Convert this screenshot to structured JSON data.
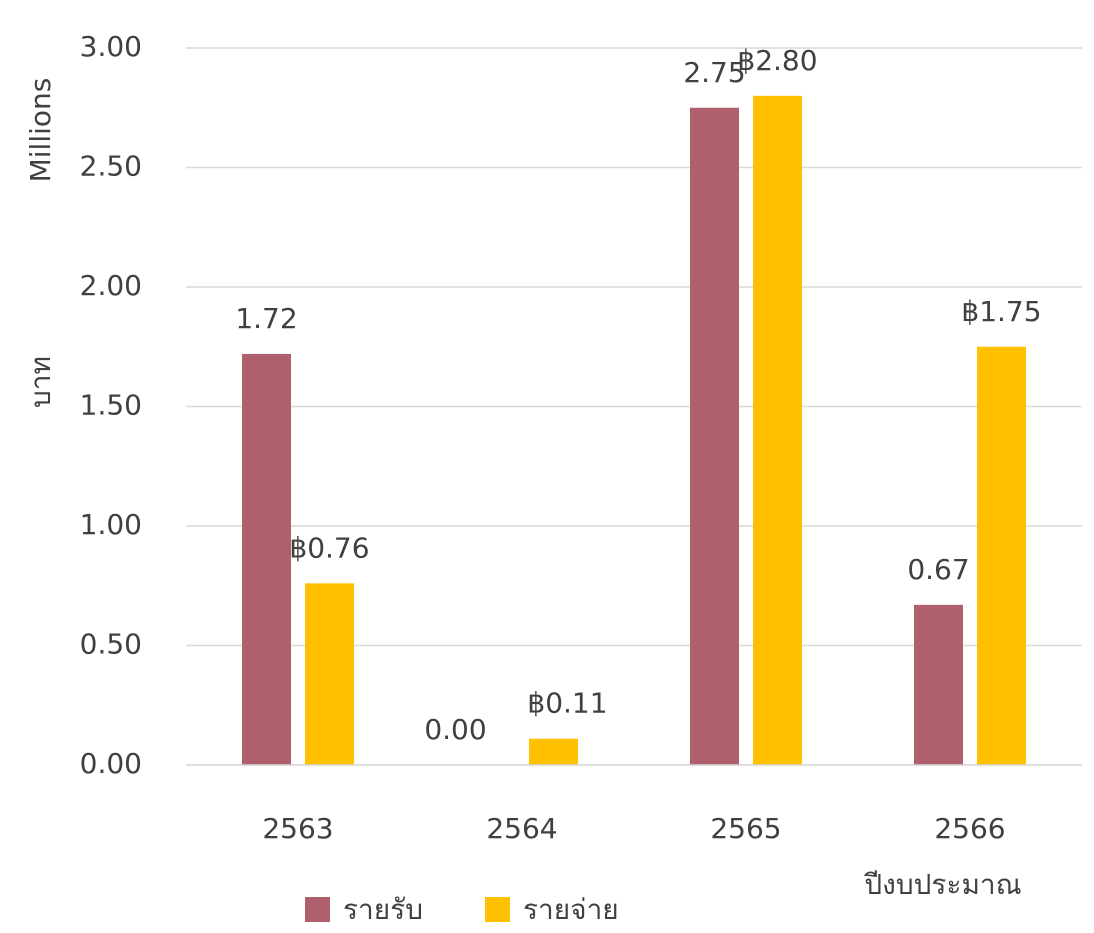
{
  "chart_data": {
    "type": "bar",
    "y_label_top": "Millions",
    "y_label": "บาท",
    "x_label": "ปีงบประมาณ",
    "categories": [
      "2563",
      "2564",
      "2565",
      "2566"
    ],
    "series": [
      {
        "name": "รายรับ",
        "color": "#b0606c",
        "values": [
          1.72,
          0.0,
          2.75,
          0.67
        ],
        "value_labels": [
          "1.72",
          "0.00",
          "2.75",
          "0.67"
        ]
      },
      {
        "name": "รายจ่าย",
        "color": "#ffc000",
        "values": [
          0.76,
          0.11,
          2.8,
          1.75
        ],
        "value_labels": [
          "฿0.76",
          "฿0.11",
          "฿2.80",
          "฿1.75"
        ]
      }
    ],
    "ylim": [
      0,
      3
    ],
    "yticks": [
      {
        "value": 0,
        "label": "0.00"
      },
      {
        "value": 0.5,
        "label": "0.50"
      },
      {
        "value": 1,
        "label": "1.00"
      },
      {
        "value": 1.5,
        "label": "1.50"
      },
      {
        "value": 2,
        "label": "2.00"
      },
      {
        "value": 2.5,
        "label": "2.50"
      },
      {
        "value": 3,
        "label": "3.00"
      }
    ],
    "grid": true
  }
}
